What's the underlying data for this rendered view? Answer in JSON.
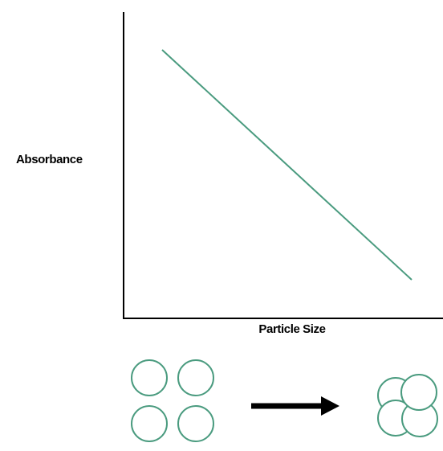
{
  "axes": {
    "y_label": "Absorbance",
    "x_label": "Particle Size"
  }
}
